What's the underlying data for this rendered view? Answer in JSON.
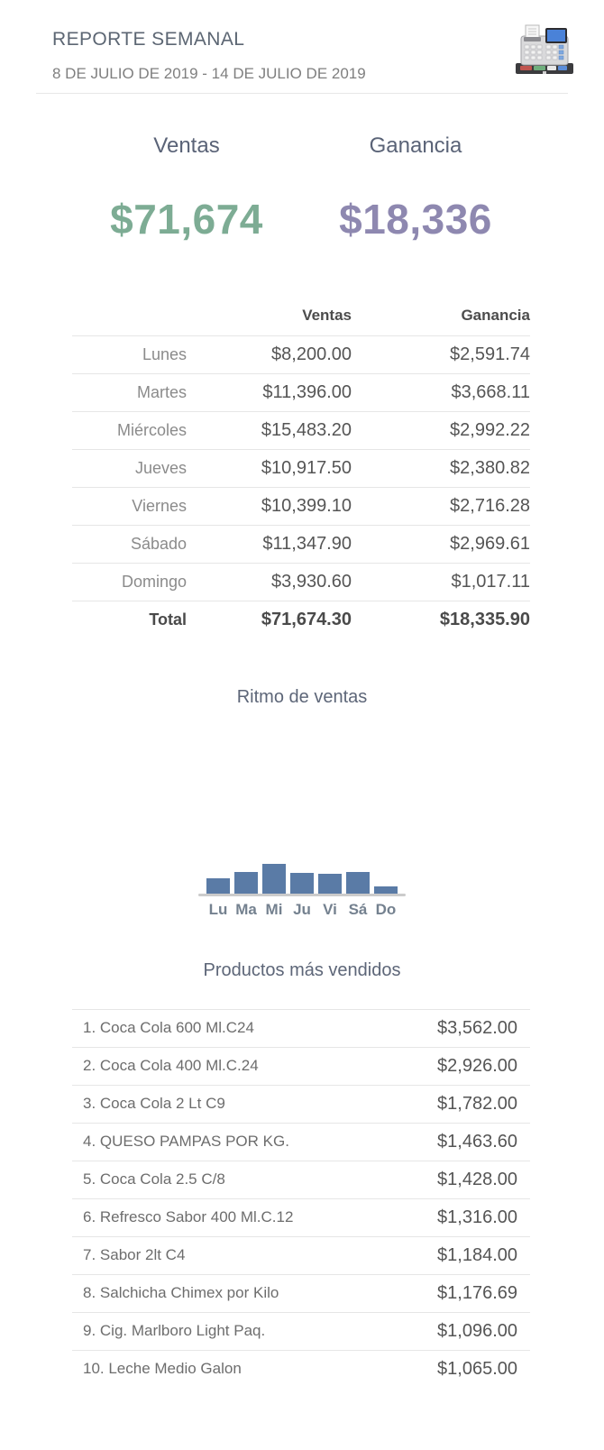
{
  "header": {
    "title": "REPORTE SEMANAL",
    "date_range": "8 DE JULIO DE 2019 - 14 DE JULIO DE 2019",
    "icon": "cash-register-icon"
  },
  "summary": {
    "sales_label": "Ventas",
    "sales_value": "$71,674",
    "sales_color": "#7dac94",
    "profit_label": "Ganancia",
    "profit_value": "$18,336",
    "profit_color": "#8e88b0"
  },
  "daily_table": {
    "columns": [
      "",
      "Ventas",
      "Ganancia"
    ],
    "rows": [
      {
        "day": "Lunes",
        "ventas": "$8,200.00",
        "ganancia": "$2,591.74"
      },
      {
        "day": "Martes",
        "ventas": "$11,396.00",
        "ganancia": "$3,668.11"
      },
      {
        "day": "Miércoles",
        "ventas": "$15,483.20",
        "ganancia": "$2,992.22"
      },
      {
        "day": "Jueves",
        "ventas": "$10,917.50",
        "ganancia": "$2,380.82"
      },
      {
        "day": "Viernes",
        "ventas": "$10,399.10",
        "ganancia": "$2,716.28"
      },
      {
        "day": "Sábado",
        "ventas": "$11,347.90",
        "ganancia": "$2,969.61"
      },
      {
        "day": "Domingo",
        "ventas": "$3,930.60",
        "ganancia": "$1,017.11"
      }
    ],
    "total": {
      "day": "Total",
      "ventas": "$71,674.30",
      "ganancia": "$18,335.90"
    }
  },
  "chart_data": {
    "type": "bar",
    "title": "Ritmo de ventas",
    "categories": [
      "Lu",
      "Ma",
      "Mi",
      "Ju",
      "Vi",
      "Sá",
      "Do"
    ],
    "values": [
      8200.0,
      11396.0,
      15483.2,
      10917.5,
      10399.1,
      11347.9,
      3930.6
    ],
    "ylim": [
      0,
      15483.2
    ],
    "bar_color": "#5a7ba6",
    "baseline_color": "#cbcbcb",
    "grid": false,
    "legend": false
  },
  "products": {
    "title": "Productos más vendidos",
    "items": [
      {
        "label": "1. Coca Cola 600 Ml.C24",
        "amount": "$3,562.00"
      },
      {
        "label": "2. Coca Cola 400 Ml.C.24",
        "amount": "$2,926.00"
      },
      {
        "label": "3. Coca Cola 2 Lt C9",
        "amount": "$1,782.00"
      },
      {
        "label": "4. QUESO PAMPAS POR KG.",
        "amount": "$1,463.60"
      },
      {
        "label": "5. Coca Cola 2.5 C/8",
        "amount": "$1,428.00"
      },
      {
        "label": "6. Refresco Sabor 400 Ml.C.12",
        "amount": "$1,316.00"
      },
      {
        "label": "7. Sabor 2lt C4",
        "amount": "$1,184.00"
      },
      {
        "label": "8. Salchicha Chimex por Kilo",
        "amount": "$1,176.69"
      },
      {
        "label": "9. Cig. Marlboro Light Paq.",
        "amount": "$1,096.00"
      },
      {
        "label": "10. Leche Medio Galon",
        "amount": "$1,065.00"
      }
    ]
  }
}
